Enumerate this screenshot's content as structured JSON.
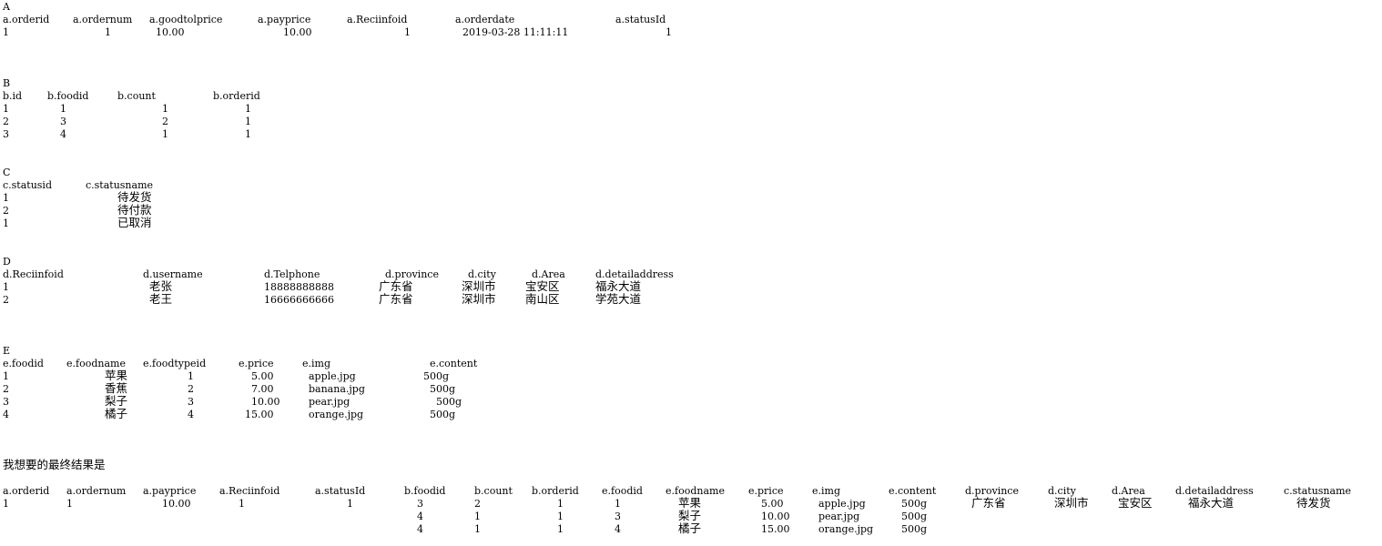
{
  "sections": {
    "A": {
      "label": "A",
      "headers": [
        "a.orderid",
        "a.ordernum",
        "a.goodtolprice",
        "a.payprice",
        "a.Reciinfoid",
        "a.orderdate",
        "a.statusId"
      ],
      "rows": [
        [
          "1",
          "1",
          "10.00",
          "10.00",
          "1",
          "2019-03-28 11:11:11",
          "1"
        ]
      ]
    },
    "B": {
      "label": "B",
      "headers": [
        "b.id",
        "b.foodid",
        "b.count",
        "b.orderid"
      ],
      "rows": [
        [
          "1",
          "1",
          "1",
          "1"
        ],
        [
          "2",
          "3",
          "2",
          "1"
        ],
        [
          "3",
          "4",
          "1",
          "1"
        ]
      ]
    },
    "C": {
      "label": "C",
      "headers": [
        "c.statusid",
        "c.statusname"
      ],
      "rows": [
        [
          "1",
          "待发货"
        ],
        [
          "2",
          "待付款"
        ],
        [
          "1",
          "已取消"
        ]
      ]
    },
    "D": {
      "label": "D",
      "headers": [
        "d.Reciinfoid",
        "d.username",
        "d.Telphone",
        "d.province",
        "d.city",
        "d.Area",
        "d.detailaddress"
      ],
      "rows": [
        [
          "1",
          "老张",
          "18888888888",
          "广东省",
          "深圳市",
          "宝安区",
          "福永大道"
        ],
        [
          "2",
          "老王",
          "16666666666",
          "广东省",
          "深圳市",
          "南山区",
          "学苑大道"
        ]
      ]
    },
    "E": {
      "label": "E",
      "headers": [
        "e.foodid",
        "e.foodname",
        "e.foodtypeid",
        "e.price",
        "e.img",
        "e.content"
      ],
      "rows": [
        [
          "1",
          "苹果",
          "1",
          "5.00",
          "apple.jpg",
          "500g"
        ],
        [
          "2",
          "香蕉",
          "2",
          "7.00",
          "banana.jpg",
          "500g"
        ],
        [
          "3",
          "梨子",
          "3",
          "10.00",
          "pear.jpg",
          "500g"
        ],
        [
          "4",
          "橘子",
          "4",
          "15.00",
          "orange.jpg",
          "500g"
        ]
      ]
    }
  },
  "result": {
    "title": "我想要的最终结果是",
    "headers": [
      "a.orderid",
      "a.ordernum",
      "a.payprice",
      "a.Reciinfoid",
      "a.statusId",
      "b.foodid",
      "b.count",
      "b.orderid",
      "e.foodid",
      "e.foodname",
      "e.price",
      "e.img",
      "e.content",
      "d.province",
      "d.city",
      "d.Area",
      "d.detailaddress",
      "c.statusname"
    ],
    "rows": [
      [
        "1",
        "1",
        "10.00",
        "1",
        "1",
        "3",
        "2",
        "1",
        "1",
        "苹果",
        "5.00",
        "apple.jpg",
        "500g",
        "广东省",
        "深圳市",
        "宝安区",
        "福永大道",
        "待发货"
      ],
      [
        "",
        "",
        "",
        "",
        "",
        "4",
        "1",
        "1",
        "3",
        "梨子",
        "10.00",
        "pear.jpg",
        "500g",
        "",
        "",
        "",
        "",
        ""
      ],
      [
        "",
        "",
        "",
        "",
        "",
        "4",
        "1",
        "1",
        "4",
        "橘子",
        "15.00",
        "orange.jpg",
        "500g",
        "",
        "",
        "",
        "",
        ""
      ]
    ]
  }
}
